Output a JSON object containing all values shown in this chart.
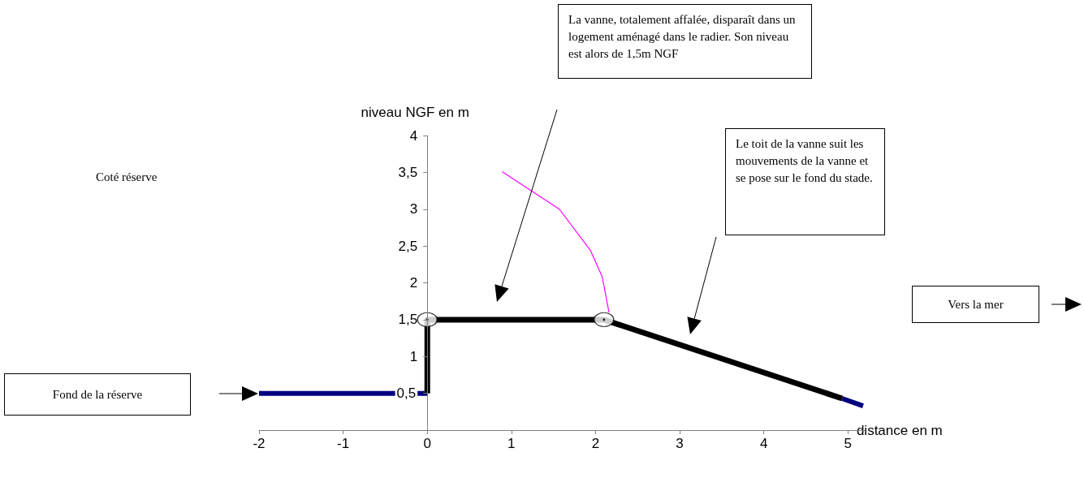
{
  "chart_data": {
    "type": "line",
    "xlabel": "distance en m",
    "ylabel": "niveau NGF en m",
    "xlim": [
      -2,
      5.2
    ],
    "xticks": [
      -2,
      -1,
      0,
      1,
      2,
      3,
      4,
      5
    ],
    "ylim": [
      0,
      4
    ],
    "yticks": [
      {
        "value": 0,
        "label": null
      },
      {
        "value": 0.5,
        "label": "0,5"
      },
      {
        "value": 1,
        "label": "1"
      },
      {
        "value": 1.5,
        "label": "1,5"
      },
      {
        "value": 2,
        "label": "2"
      },
      {
        "value": 2.5,
        "label": "2,5"
      },
      {
        "value": 3,
        "label": "3"
      },
      {
        "value": 3.5,
        "label": "3,5"
      },
      {
        "value": 4,
        "label": "4"
      }
    ],
    "grid": false,
    "series": [
      {
        "color": "#000080",
        "x": [
          -2,
          0,
          2,
          4.93,
          5.18
        ],
        "values": [
          0.5,
          0.5,
          null,
          0.43,
          0.33
        ],
        "marker": "none"
      },
      {
        "color": "#000000",
        "x": [
          0,
          0,
          2.1,
          4.93
        ],
        "values": [
          0.5,
          1.5,
          1.5,
          0.43
        ],
        "marker": "none"
      },
      {
        "color": "#ff00ff",
        "x": [
          0.89,
          1.57,
          1.94,
          2.08,
          2.16
        ],
        "values": [
          3.51,
          3.0,
          2.44,
          2.08,
          1.6
        ],
        "marker": "none"
      },
      {
        "type": "scatter",
        "color": "#000000",
        "x": [
          0,
          2.1
        ],
        "values": [
          1.5,
          1.5
        ],
        "marker": "circle"
      }
    ],
    "annotations": [
      "La vanne, totalement affalée, disparaît dans un logement aménagé dans le radier. Son niveau est alors de 1,5m NGF",
      "Le toit de la vanne  suit les mouvements de la vanne et se pose sur  le fond du stade.",
      "Coté réserve",
      "Vers la mer",
      "Fond de la réserve"
    ]
  }
}
